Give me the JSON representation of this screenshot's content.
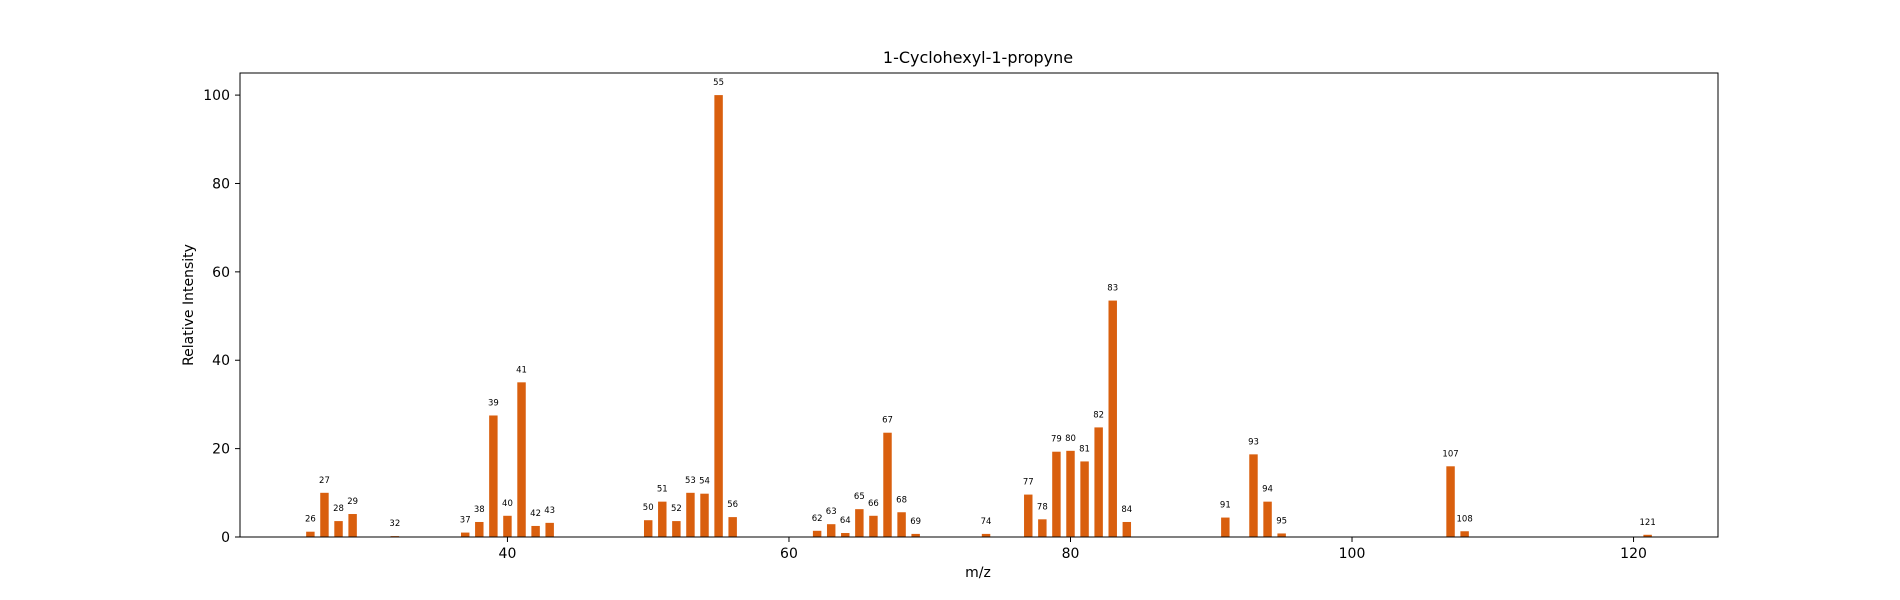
{
  "chart_data": {
    "type": "bar",
    "title": "1-Cyclohexyl-1-propyne",
    "xlabel": "m/z",
    "ylabel": "Relative Intensity",
    "xlim": [
      21,
      126
    ],
    "ylim": [
      0,
      105
    ],
    "xticks": [
      40,
      60,
      80,
      100,
      120
    ],
    "yticks": [
      0,
      20,
      40,
      60,
      80,
      100
    ],
    "grid": false,
    "bar_color": "#d95f0e",
    "x": [
      26,
      27,
      28,
      29,
      32,
      37,
      38,
      39,
      40,
      41,
      42,
      43,
      50,
      51,
      52,
      53,
      54,
      55,
      56,
      62,
      63,
      64,
      65,
      66,
      67,
      68,
      69,
      74,
      77,
      78,
      79,
      80,
      81,
      82,
      83,
      84,
      91,
      93,
      94,
      95,
      107,
      108,
      121
    ],
    "values": [
      1.2,
      10.0,
      3.6,
      5.2,
      0.2,
      1.0,
      3.4,
      27.5,
      4.8,
      35.0,
      2.5,
      3.2,
      3.8,
      8.0,
      3.6,
      10.0,
      9.8,
      100,
      4.5,
      1.4,
      2.9,
      0.9,
      6.3,
      4.8,
      23.6,
      5.6,
      0.7,
      0.7,
      9.6,
      4.0,
      19.3,
      19.5,
      17.1,
      24.8,
      53.5,
      3.4,
      4.4,
      18.7,
      8.0,
      0.8,
      16.0,
      1.3,
      0.5
    ],
    "labels": [
      "26",
      "27",
      "28",
      "29",
      "32",
      "37",
      "38",
      "39",
      "40",
      "41",
      "42",
      "43",
      "50",
      "51",
      "52",
      "53",
      "54",
      "55",
      "56",
      "62",
      "63",
      "64",
      "65",
      "66",
      "67",
      "68",
      "69",
      "74",
      "77",
      "78",
      "79",
      "80",
      "81",
      "82",
      "83",
      "84",
      "91",
      "93",
      "94",
      "95",
      "107",
      "108",
      "121"
    ]
  }
}
